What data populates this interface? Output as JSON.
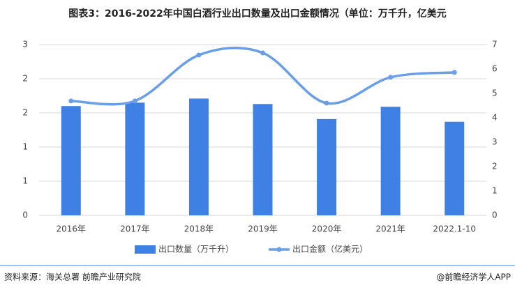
{
  "chart_data": {
    "type": "bar_line",
    "title": "图表3：2016-2022年中国白酒行业出口数量及出口金额情况（单位：万千升，亿美元",
    "categories": [
      "2016年",
      "2017年",
      "2018年",
      "2019年",
      "2020年",
      "2021年",
      "2022.1-10"
    ],
    "series": [
      {
        "name": "出口数量（万千升）",
        "type": "bar",
        "color": "#3f80e4",
        "values": [
          1.6,
          1.65,
          1.71,
          1.63,
          1.41,
          1.59,
          1.37
        ]
      },
      {
        "name": "出口金额（亿美元）",
        "type": "line",
        "axis": "y2",
        "color": "#6a9ee8",
        "values": [
          4.69,
          4.69,
          6.57,
          6.66,
          4.6,
          5.66,
          5.86
        ]
      }
    ],
    "ylim": [
      0,
      2.5
    ],
    "yticks": [
      0,
      {
        "value": 0.5,
        "label": "1"
      },
      {
        "value": 1,
        "label": "1"
      },
      {
        "value": 1.5,
        "label": "2"
      },
      {
        "value": 2,
        "label": "2"
      },
      {
        "value": 2.5,
        "label": "3"
      }
    ],
    "y2lim": [
      0,
      7
    ],
    "y2ticks": [
      0,
      1,
      2,
      3,
      4,
      5,
      6,
      7
    ],
    "grid": true,
    "legend": "bottom",
    "source": "资料来源：海关总署 前瞻产业研究院",
    "credit": "@前瞻经济学人APP"
  }
}
